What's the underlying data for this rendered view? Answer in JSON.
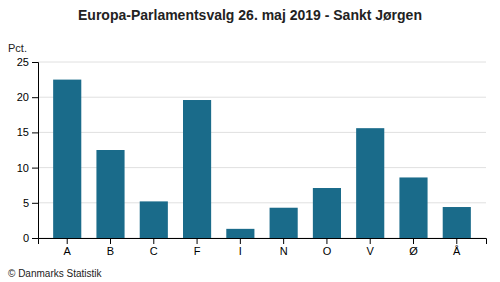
{
  "chart_data": {
    "type": "bar",
    "title": "Europa-Parlamentsvalg 26. maj 2019 - Sankt Jørgen",
    "ylabel": "Pct.",
    "footer": "© Danmarks Statistik",
    "categories": [
      "A",
      "B",
      "C",
      "F",
      "I",
      "N",
      "O",
      "V",
      "Ø",
      "Å"
    ],
    "values": [
      22.5,
      12.5,
      5.2,
      19.6,
      1.3,
      4.3,
      7.1,
      15.6,
      8.6,
      4.4
    ],
    "color": "#1a6b8a",
    "ylim": [
      0,
      25
    ],
    "yticks": [
      0,
      5,
      10,
      15,
      20,
      25
    ],
    "grid": true
  }
}
